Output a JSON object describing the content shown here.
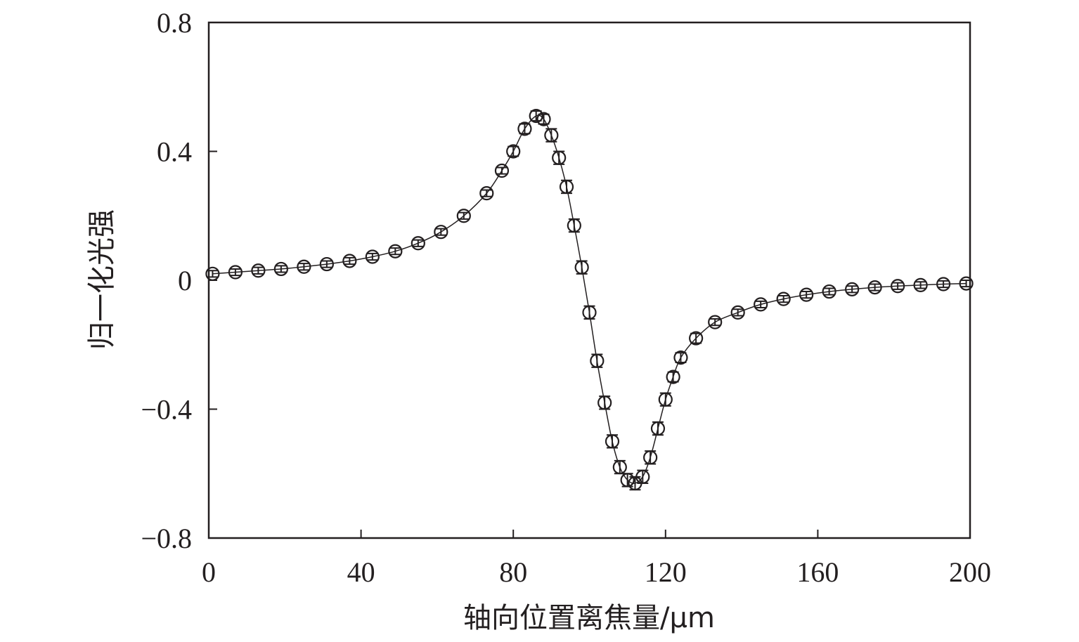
{
  "chart_data": {
    "type": "scatter",
    "xlabel": "轴向位置离焦量/μm",
    "ylabel": "归一化光强",
    "xlim": [
      0,
      200
    ],
    "ylim": [
      -0.8,
      0.8
    ],
    "x_ticks": [
      0,
      40,
      80,
      120,
      160,
      200
    ],
    "x_tick_labels": [
      "0",
      "40",
      "80",
      "120",
      "160",
      "200"
    ],
    "y_ticks": [
      0.8,
      0.4,
      0,
      -0.4,
      -0.8
    ],
    "y_tick_labels": [
      "0.8",
      "0.4",
      "0",
      "−0.4",
      "−0.8"
    ],
    "grid": false,
    "legend": "none",
    "marker": "open-circle",
    "error_bars": true,
    "fit_line": true,
    "series": [
      {
        "x": [
          1,
          7,
          13,
          19,
          25,
          31,
          37,
          43,
          49,
          55,
          61,
          67,
          73,
          77,
          80,
          83,
          86,
          88,
          90,
          92,
          94,
          96,
          98,
          100,
          102,
          104,
          106,
          108,
          110,
          112,
          114,
          116,
          118,
          120,
          122,
          124,
          128,
          133,
          139,
          145,
          151,
          157,
          163,
          169,
          175,
          181,
          187,
          193,
          199
        ],
        "y": [
          0.02,
          0.025,
          0.03,
          0.035,
          0.042,
          0.05,
          0.06,
          0.073,
          0.09,
          0.115,
          0.15,
          0.2,
          0.27,
          0.34,
          0.4,
          0.47,
          0.51,
          0.5,
          0.45,
          0.38,
          0.29,
          0.17,
          0.04,
          -0.1,
          -0.25,
          -0.38,
          -0.5,
          -0.58,
          -0.62,
          -0.63,
          -0.61,
          -0.55,
          -0.46,
          -0.37,
          -0.3,
          -0.24,
          -0.18,
          -0.13,
          -0.1,
          -0.075,
          -0.058,
          -0.045,
          -0.035,
          -0.028,
          -0.022,
          -0.018,
          -0.015,
          -0.012,
          -0.01
        ],
        "error": [
          0.01,
          0.01,
          0.01,
          0.01,
          0.01,
          0.01,
          0.01,
          0.01,
          0.01,
          0.01,
          0.01,
          0.01,
          0.01,
          0.01,
          0.015,
          0.015,
          0.015,
          0.015,
          0.02,
          0.02,
          0.02,
          0.02,
          0.02,
          0.02,
          0.02,
          0.02,
          0.02,
          0.02,
          0.02,
          0.02,
          0.02,
          0.02,
          0.02,
          0.02,
          0.015,
          0.015,
          0.015,
          0.01,
          0.01,
          0.01,
          0.01,
          0.01,
          0.01,
          0.01,
          0.01,
          0.01,
          0.01,
          0.01,
          0.01
        ]
      }
    ]
  }
}
